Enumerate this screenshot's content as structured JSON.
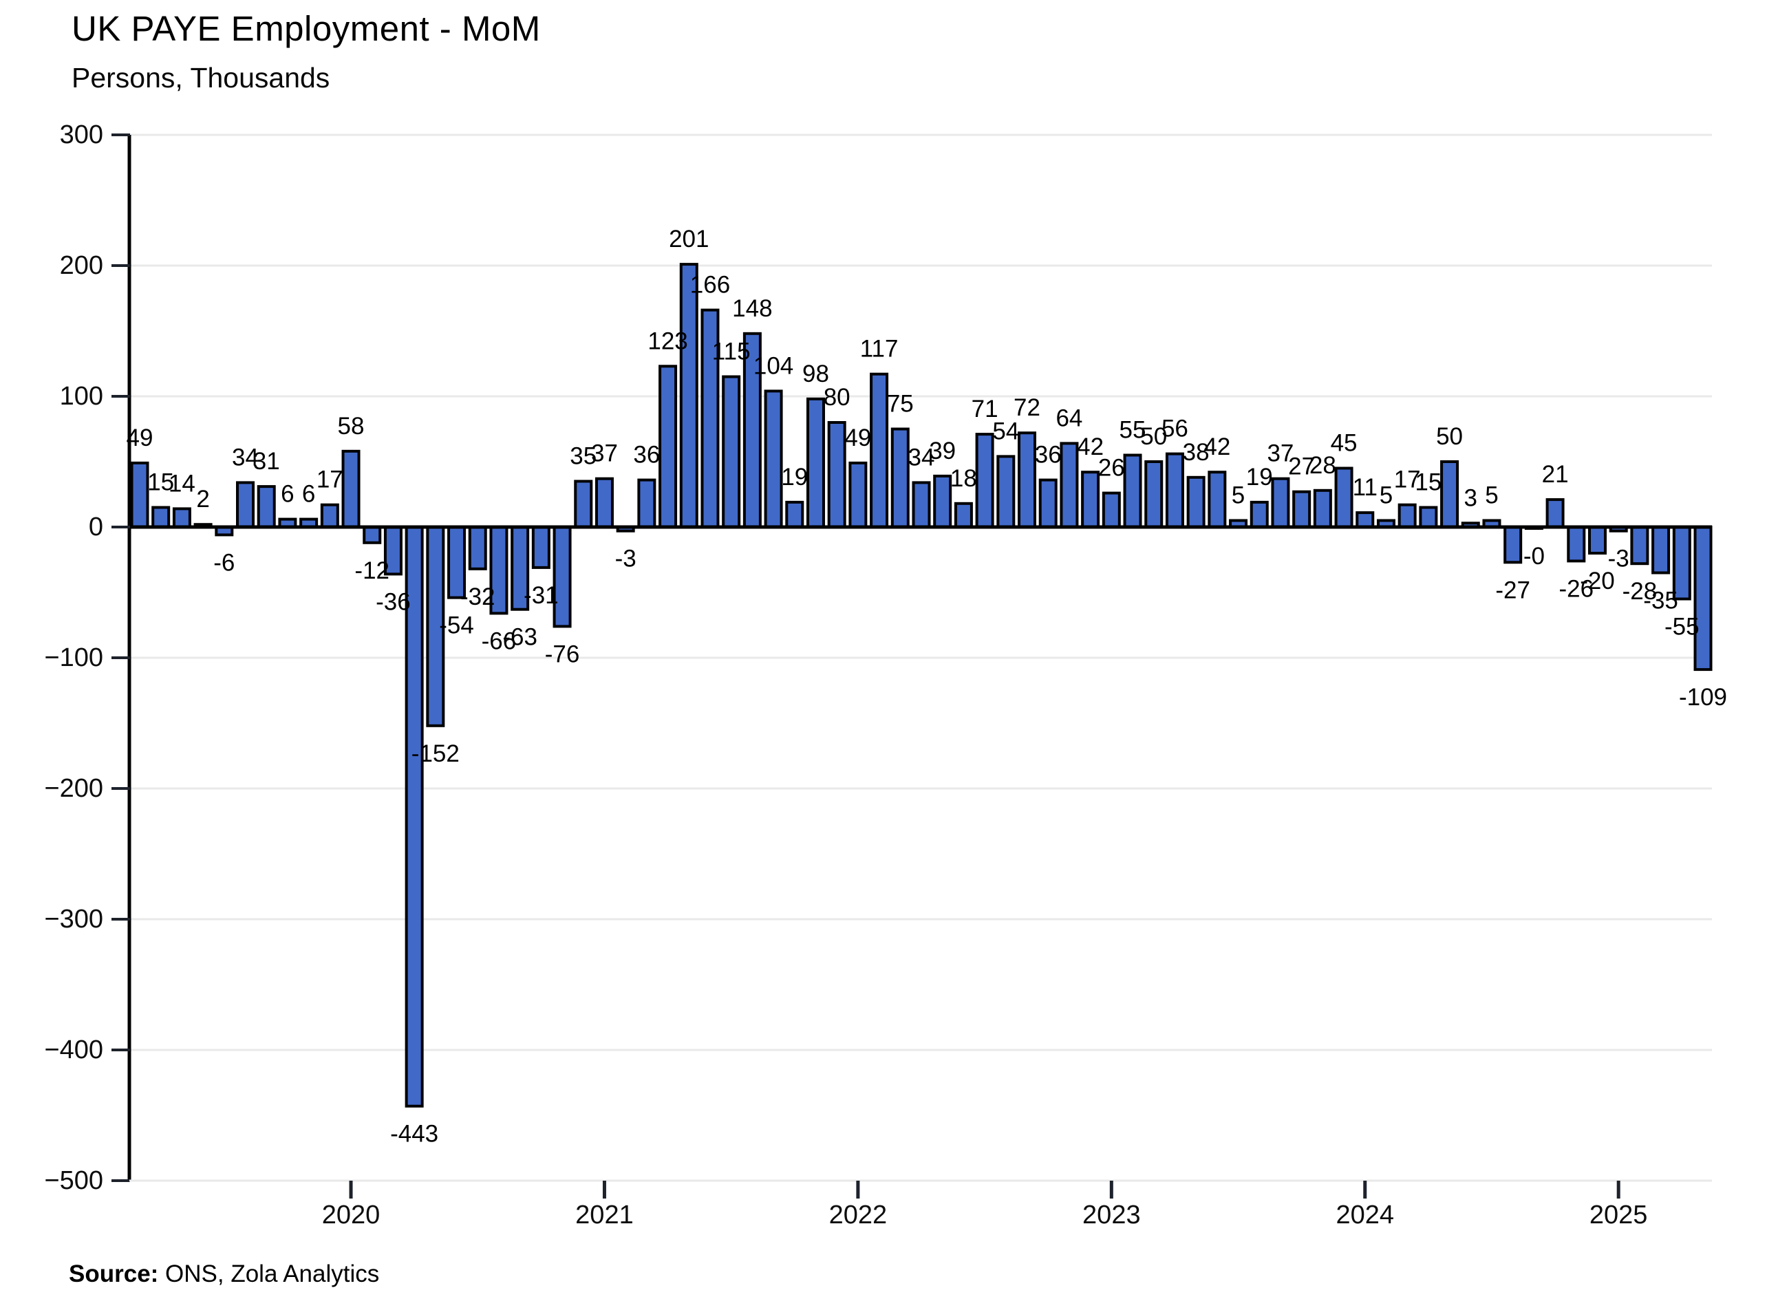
{
  "header": {
    "title": "UK PAYE Employment - MoM",
    "subtitle": "Persons, Thousands"
  },
  "footer": {
    "source_label": "Source:",
    "source_value": " ONS, Zola Analytics"
  },
  "chart_data": {
    "type": "bar",
    "title": "UK PAYE Employment - MoM",
    "subtitle": "Persons, Thousands",
    "ylabel": "Persons, Thousands",
    "ylim": [
      -500,
      300
    ],
    "ytick_step": 100,
    "ytick_values": [
      300,
      200,
      100,
      0,
      -100,
      -200,
      -300,
      -400,
      -500
    ],
    "ytick_labels": [
      "300",
      "200",
      "100",
      "0",
      "−100",
      "−200",
      "−300",
      "−400",
      "−500"
    ],
    "grid": "horizontal-light-gray",
    "legend": "none",
    "values": [
      49,
      15,
      14,
      2,
      -6,
      34,
      31,
      6,
      6,
      17,
      58,
      -12,
      -36,
      -443,
      -152,
      -54,
      -32,
      -66,
      -63,
      -31,
      -76,
      35,
      37,
      -3,
      36,
      123,
      201,
      166,
      115,
      148,
      104,
      19,
      98,
      80,
      49,
      117,
      75,
      34,
      39,
      18,
      71,
      54,
      72,
      36,
      64,
      42,
      26,
      55,
      50,
      56,
      38,
      42,
      5,
      19,
      37,
      27,
      28,
      45,
      11,
      5,
      17,
      15,
      50,
      3,
      5,
      -27,
      0,
      21,
      -26,
      -20,
      -3,
      -28,
      -35,
      -55,
      -109
    ],
    "labels": [
      "49",
      "15",
      "14",
      "2",
      "-6",
      "34",
      "31",
      "6",
      "6",
      "17",
      "58",
      "-12",
      "-36",
      "-443",
      "-152",
      "-54",
      "-32",
      "-66",
      "-63",
      "-31",
      "-76",
      "35",
      "37",
      "-3",
      "36",
      "123",
      "201",
      "166",
      "115",
      "148",
      "104",
      "19",
      "98",
      "80",
      "49",
      "117",
      "75",
      "34",
      "39",
      "18",
      "71",
      "54",
      "72",
      "36",
      "64",
      "42",
      "26",
      "55",
      "50",
      "56",
      "38",
      "42",
      "5",
      "19",
      "37",
      "27",
      "28",
      "45",
      "11",
      "5",
      "17",
      "15",
      "50",
      "3",
      "5",
      "-27",
      "-0",
      "21",
      "-26",
      "-20",
      "-3",
      "-28",
      "-35",
      "-55",
      "-109"
    ],
    "x_year_ticks": [
      {
        "label": "2020",
        "bar_index": 10
      },
      {
        "label": "2021",
        "bar_index": 22
      },
      {
        "label": "2022",
        "bar_index": 34
      },
      {
        "label": "2023",
        "bar_index": 46
      },
      {
        "label": "2024",
        "bar_index": 58
      },
      {
        "label": "2025",
        "bar_index": 70
      }
    ],
    "colors": {
      "bar_fill": "#4169c8",
      "bar_outline": "#000000",
      "gridline": "#e9e9e9",
      "zero_line": "#000000",
      "axis_line": "#000000",
      "tick_mark": "#1d222b",
      "label_text": "#000000",
      "axis_text": "#0d0d0d"
    }
  }
}
